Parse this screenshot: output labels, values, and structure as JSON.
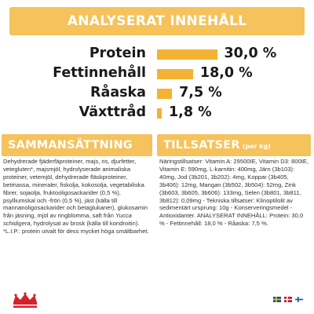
{
  "analysis": {
    "title": "ANALYSERAT INNEHÅLL",
    "rows": [
      {
        "label": "Protein",
        "value": "30,0 %",
        "amount": 30.0
      },
      {
        "label": "Fettinnehåll",
        "value": "18,0 %",
        "amount": 18.0
      },
      {
        "label": "Råaska",
        "value": "7,5 %",
        "amount": 7.5
      },
      {
        "label": "Växttråd",
        "value": "1,8 %",
        "amount": 1.8
      }
    ]
  },
  "composition": {
    "title": "SAMMANSÄTTNING",
    "text_before": "Dehydrerade fjäderfäproteiner, majs, ris, djurfetter, vetegluten*, majsmjöl, hydrolyserade animaliska proteiner, vetemjöl, dehydrerade fläskproteiner, betmassa, mineraler, fiskolja, kokosolja, vegetabiliska fibrer, sojaolja, fruktooligosackarider (0,5 %), psylliumskal och -frön (0,5 %), jäst (källa till mannanoligosackarider och betaglukaner), glukosamin från jäsning, mjöl av ringblomma, saft från ",
    "italic": "Yucca schidigera",
    "text_after": ", hydrolysat av brosk (källa till kondroitin). *L.I.P.: protein utvalt för dess mycket höga smältbarhet."
  },
  "additives": {
    "title": "TILLSATSER",
    "subtitle": "(per kg)",
    "text": "Näringstillsatser: Vitamin A: 29500IE, Vitamin D3: 800IE, Vitamin E: 590mg, L-karnitin: 400mg, Järn (3b103): 40mg, Jod (3b201, 3b202): 4mg, Koppar (3b405, 3b406): 12mg, Mangan (3b502, 3b504): 52mg, Zink (3b603, 3b605, 3b606): 133mg, Selen (3b801, 3b811, 3b812): 0,09mg - Tekniska tillsatser: Klinoptilolit av sedimentärt ursprung: 10g - Konserveringsmedel - Antioxidanter. ANALYSERAT INNEHÅLL: Protein: 30,0 % - Fettinnehåll: 18,0 % - Råaska: 7,5 %."
  },
  "colors": {
    "accent": "#f5c25b",
    "bar": "#f2b233",
    "brand_red": "#d2232a"
  },
  "icons": [
    "royal-canin-logo",
    "flag-icon"
  ]
}
